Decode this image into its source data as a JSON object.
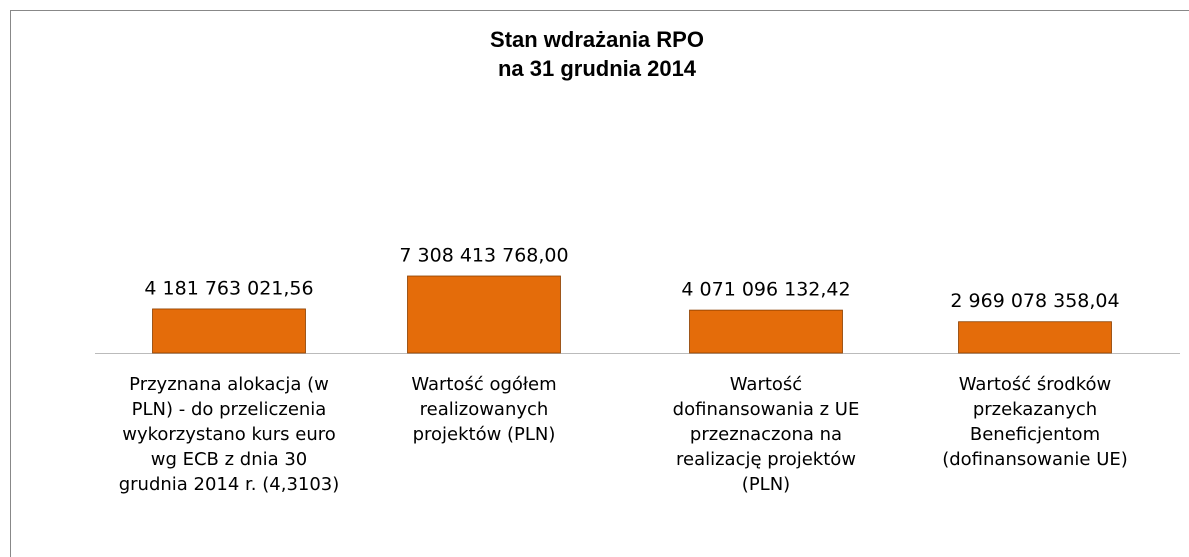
{
  "chart_data": {
    "type": "bar",
    "title": "Stan wdrażania RPO\nna 31 grudnia 2014",
    "categories": [
      "Przyznana alokacja (w\nPLN) - do przeliczenia\nwykorzystano kurs euro\nwg ECB z dnia 30\ngrudnia 2014 r. (4,3103)",
      "Wartość ogółem\nrealizowanych\nprojektów (PLN)",
      "Wartość\ndofinansowania z UE\nprzeznaczona na\nrealizację projektów\n(PLN)",
      "Wartość środków\nprzekazanych\nBeneficjentom\n(dofinansowanie UE)"
    ],
    "values": [
      4181763021.56,
      7308413768.0,
      4071096132.42,
      2969078358.04
    ],
    "value_labels": [
      "4 181 763 021,56",
      "7 308 413 768,00",
      "4 071 096 132,42",
      "2 969 078 358,04"
    ],
    "color": "#e46c0a"
  }
}
